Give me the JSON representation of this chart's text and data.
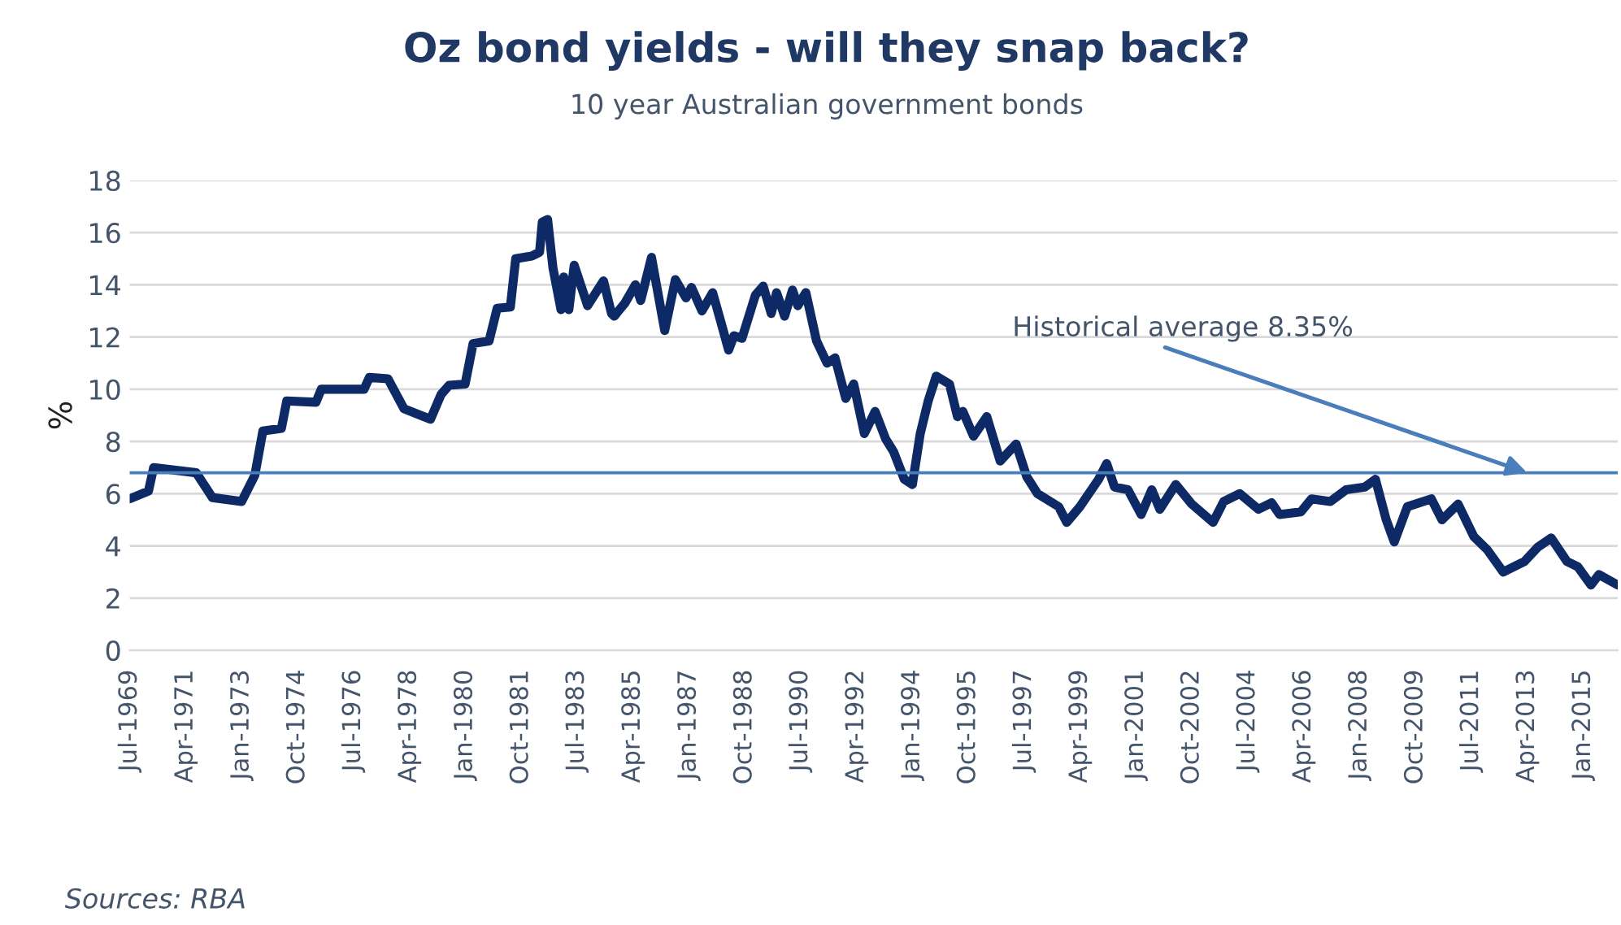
{
  "chart_data": {
    "type": "line",
    "title": "Oz bond yields - will they snap back?",
    "subtitle": "10 year Australian government bonds",
    "ylabel": "%",
    "x": [
      "1969-07",
      "1970-02",
      "1970-04",
      "1971-08",
      "1972-02",
      "1973-01",
      "1973-06",
      "1973-09",
      "1974-04",
      "1974-06",
      "1975-05",
      "1975-07",
      "1976-11",
      "1977-01",
      "1977-08",
      "1978-02",
      "1978-12",
      "1979-04",
      "1979-07",
      "1980-01",
      "1980-04",
      "1980-10",
      "1981-01",
      "1981-06",
      "1981-08",
      "1982-02",
      "1982-05",
      "1982-06",
      "1982-08",
      "1982-10",
      "1983-01",
      "1983-02",
      "1983-04",
      "1983-06",
      "1983-11",
      "1984-05",
      "1984-08",
      "1984-09",
      "1985-01",
      "1985-05",
      "1985-07",
      "1985-11",
      "1986-04",
      "1986-08",
      "1986-12",
      "1987-02",
      "1987-06",
      "1987-10",
      "1988-01",
      "1988-04",
      "1988-06",
      "1988-09",
      "1989-02",
      "1989-05",
      "1989-08",
      "1989-10",
      "1990-01",
      "1990-04",
      "1990-06",
      "1990-09",
      "1991-01",
      "1991-05",
      "1991-08",
      "1991-12",
      "1992-03",
      "1992-07",
      "1992-11",
      "1993-03",
      "1993-06",
      "1993-10",
      "1994-01",
      "1994-04",
      "1994-07",
      "1994-10",
      "1995-03",
      "1995-06",
      "1995-08",
      "1995-12",
      "1996-05",
      "1996-10",
      "1997-04",
      "1997-08",
      "1997-12",
      "1998-08",
      "1998-11",
      "1999-04",
      "1999-11",
      "2000-02",
      "2000-05",
      "2000-10",
      "2001-03",
      "2001-07",
      "2001-10",
      "2002-04",
      "2002-10",
      "2003-06",
      "2003-10",
      "2004-04",
      "2004-11",
      "2005-04",
      "2005-07",
      "2006-03",
      "2006-07",
      "2007-02",
      "2007-08",
      "2008-03",
      "2008-07",
      "2008-11",
      "2009-02",
      "2009-07",
      "2010-04",
      "2010-08",
      "2011-02",
      "2011-08",
      "2012-01",
      "2012-07",
      "2013-03",
      "2013-08",
      "2014-01",
      "2014-07",
      "2014-11",
      "2015-04",
      "2015-07",
      "2016-02"
    ],
    "series": [
      {
        "color": "#0d2a66",
        "values": [
          5.8,
          6.1,
          7.0,
          6.8,
          5.85,
          5.7,
          6.7,
          8.4,
          8.5,
          9.55,
          9.5,
          10.0,
          10.0,
          10.45,
          10.4,
          9.25,
          8.85,
          9.8,
          10.15,
          10.2,
          11.75,
          11.85,
          13.1,
          13.15,
          15.0,
          15.1,
          15.25,
          16.4,
          16.5,
          14.65,
          13.05,
          14.3,
          13.05,
          14.75,
          13.2,
          14.15,
          12.9,
          12.8,
          13.3,
          14.0,
          13.4,
          15.05,
          12.25,
          14.2,
          13.5,
          13.9,
          13.0,
          13.7,
          12.6,
          11.5,
          12.05,
          11.95,
          13.6,
          13.95,
          12.9,
          13.7,
          12.8,
          13.8,
          13.2,
          13.7,
          11.85,
          11.0,
          11.2,
          9.65,
          10.2,
          8.3,
          9.15,
          8.1,
          7.6,
          6.55,
          6.35,
          8.3,
          9.55,
          10.5,
          10.2,
          8.95,
          9.15,
          8.2,
          8.95,
          7.25,
          7.9,
          6.65,
          6.0,
          5.5,
          4.9,
          5.5,
          6.55,
          7.15,
          6.25,
          6.15,
          5.2,
          6.15,
          5.4,
          6.35,
          5.6,
          4.9,
          5.7,
          6.0,
          5.4,
          5.65,
          5.2,
          5.3,
          5.8,
          5.7,
          6.15,
          6.25,
          6.55,
          5.0,
          4.15,
          5.5,
          5.8,
          5.0,
          5.6,
          4.35,
          3.85,
          3.0,
          3.4,
          3.95,
          4.3,
          3.4,
          3.2,
          2.5,
          2.9,
          2.5
        ]
      }
    ],
    "xlim": [
      "1969-07",
      "2016-02"
    ],
    "xticks": [
      {
        "value": "1969-07",
        "label": "Jul-1969"
      },
      {
        "value": "1971-04",
        "label": "Apr-1971"
      },
      {
        "value": "1973-01",
        "label": "Jan-1973"
      },
      {
        "value": "1974-10",
        "label": "Oct-1974"
      },
      {
        "value": "1976-07",
        "label": "Jul-1976"
      },
      {
        "value": "1978-04",
        "label": "Apr-1978"
      },
      {
        "value": "1980-01",
        "label": "Jan-1980"
      },
      {
        "value": "1981-10",
        "label": "Oct-1981"
      },
      {
        "value": "1983-07",
        "label": "Jul-1983"
      },
      {
        "value": "1985-04",
        "label": "Apr-1985"
      },
      {
        "value": "1987-01",
        "label": "Jan-1987"
      },
      {
        "value": "1988-10",
        "label": "Oct-1988"
      },
      {
        "value": "1990-07",
        "label": "Jul-1990"
      },
      {
        "value": "1992-04",
        "label": "Apr-1992"
      },
      {
        "value": "1994-01",
        "label": "Jan-1994"
      },
      {
        "value": "1995-10",
        "label": "Oct-1995"
      },
      {
        "value": "1997-07",
        "label": "Jul-1997"
      },
      {
        "value": "1999-04",
        "label": "Apr-1999"
      },
      {
        "value": "2001-01",
        "label": "Jan-2001"
      },
      {
        "value": "2002-10",
        "label": "Oct-2002"
      },
      {
        "value": "2004-07",
        "label": "Jul-2004"
      },
      {
        "value": "2006-04",
        "label": "Apr-2006"
      },
      {
        "value": "2008-01",
        "label": "Jan-2008"
      },
      {
        "value": "2009-10",
        "label": "Oct-2009"
      },
      {
        "value": "2011-07",
        "label": "Jul-2011"
      },
      {
        "value": "2013-04",
        "label": "Apr-2013"
      },
      {
        "value": "2015-01",
        "label": "Jan-2015"
      }
    ],
    "ylim": [
      0,
      18
    ],
    "yticks": [
      0,
      2,
      4,
      6,
      8,
      10,
      12,
      14,
      16,
      18
    ],
    "ref_lines": [
      {
        "axis": "y",
        "value": 6.8,
        "color": "#4a7ebb"
      }
    ],
    "annotations": [
      {
        "text": "Historical average 8.35%",
        "x": "2013-04",
        "y": 6.8
      },
      "Sources: RBA"
    ],
    "grid": "y",
    "legend": false,
    "marker": "none",
    "line_style": "solid"
  }
}
